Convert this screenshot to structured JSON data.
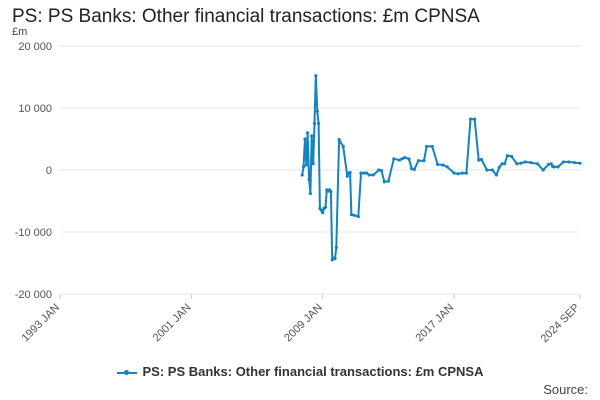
{
  "title": "PS: PS Banks: Other financial transactions: £m CPNSA",
  "unit_label": "£m",
  "source_label": "Source:",
  "colors": {
    "series": "#1483bf",
    "grid": "#e6e6e6"
  },
  "chart_data": {
    "type": "line",
    "title": "PS: PS Banks: Other financial transactions: £m CPNSA",
    "ylabel": "£m",
    "xlabel": "",
    "ylim": [
      -20000,
      20000
    ],
    "yticks": [
      20000,
      10000,
      0,
      -10000,
      -20000
    ],
    "ytick_labels": [
      "20 000",
      "10 000",
      "0",
      "-10 000",
      "-20 000"
    ],
    "xlim": [
      1993.0,
      2024.67
    ],
    "xticks": [
      1993.0,
      2001.0,
      2009.0,
      2017.0,
      2024.67
    ],
    "xtick_labels": [
      "1993 JAN",
      "2001 JAN",
      "2009 JAN",
      "2017 JAN",
      "2024 SEP"
    ],
    "grid": true,
    "legend_position": "bottom",
    "series": [
      {
        "name": "PS: PS Banks: Other financial transactions: £m CPNSA",
        "x": [
          2007.75,
          2007.83,
          2007.92,
          2008.0,
          2008.08,
          2008.17,
          2008.25,
          2008.33,
          2008.42,
          2008.5,
          2008.58,
          2008.67,
          2008.75,
          2008.83,
          2008.92,
          2009.0,
          2009.08,
          2009.17,
          2009.25,
          2009.33,
          2009.42,
          2009.5,
          2009.58,
          2009.67,
          2009.75,
          2009.83,
          2010.0,
          2010.25,
          2010.5,
          2010.58,
          2010.67,
          2010.75,
          2010.92,
          2011.17,
          2011.33,
          2011.5,
          2011.67,
          2011.83,
          2012.08,
          2012.42,
          2012.58,
          2012.75,
          2013.0,
          2013.33,
          2013.67,
          2013.83,
          2014.0,
          2014.25,
          2014.42,
          2014.58,
          2014.83,
          2015.17,
          2015.33,
          2015.67,
          2016.0,
          2016.33,
          2016.58,
          2017.0,
          2017.25,
          2017.5,
          2017.75,
          2018.0,
          2018.25,
          2018.5,
          2018.67,
          2019.0,
          2019.33,
          2019.58,
          2019.75,
          2019.92,
          2020.08,
          2020.25,
          2020.5,
          2020.83,
          2021.08,
          2021.33,
          2021.67,
          2022.08,
          2022.42,
          2022.75,
          2022.92,
          2023.0,
          2023.08,
          2023.33,
          2023.67,
          2024.0,
          2024.33,
          2024.67
        ],
        "values": [
          -800,
          500,
          5000,
          800,
          6000,
          -1500,
          -3800,
          5500,
          1000,
          7500,
          15200,
          9500,
          7500,
          -6200,
          -6500,
          -6900,
          -6200,
          -6000,
          -3200,
          -3400,
          -3200,
          -3500,
          -14500,
          -14200,
          -14300,
          -12500,
          4900,
          3800,
          -1000,
          -500,
          -400,
          -7200,
          -7300,
          -7500,
          -500,
          -500,
          -500,
          -800,
          -800,
          0,
          -100,
          -1900,
          -1800,
          1800,
          1600,
          1800,
          2000,
          1800,
          200,
          100,
          1500,
          1500,
          3800,
          3800,
          900,
          800,
          500,
          -500,
          -600,
          -500,
          -500,
          8200,
          8200,
          1600,
          1700,
          0,
          0,
          -800,
          400,
          1000,
          1000,
          2300,
          2200,
          1000,
          1100,
          1300,
          1200,
          1000,
          0,
          900,
          1000,
          600,
          500,
          500,
          1300,
          1300,
          1200,
          1100
        ]
      }
    ]
  }
}
